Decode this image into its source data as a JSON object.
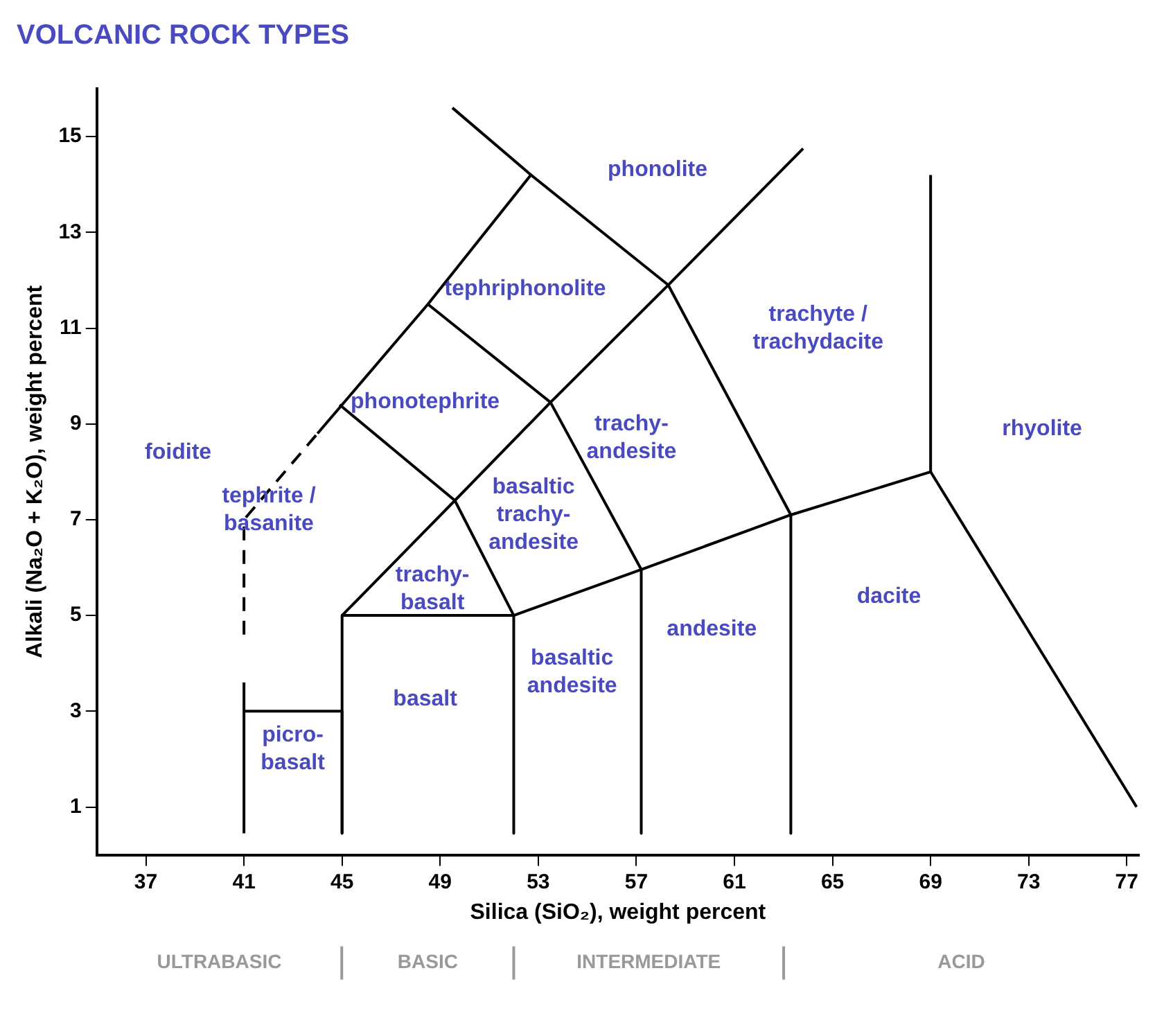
{
  "chart_data": {
    "type": "line",
    "title": "VOLCANIC ROCK TYPES",
    "xlabel": "Silica (SiO₂), weight percent",
    "ylabel": "Alkali (Na₂O + K₂O), weight percent",
    "xlim": [
      35,
      77.5
    ],
    "ylim": [
      0,
      16
    ],
    "xticks": [
      37,
      41,
      45,
      49,
      53,
      57,
      61,
      65,
      69,
      73,
      77
    ],
    "yticks": [
      1,
      3,
      5,
      7,
      9,
      11,
      13,
      15
    ],
    "grid": false,
    "legend": false,
    "marker": "none",
    "series": [
      {
        "color": "#000000",
        "x": [
          41,
          41,
          45,
          45
        ],
        "values": [
          0.45,
          3,
          3,
          0.45
        ]
      },
      {
        "color": "#000000",
        "x": [
          41,
          41
        ],
        "values": [
          3,
          3.6
        ]
      },
      {
        "color": "#000000",
        "line_style": "dashed",
        "x": [
          41,
          41,
          44
        ],
        "values": [
          4.6,
          7,
          8.8
        ]
      },
      {
        "color": "#000000",
        "x": [
          44,
          48.5,
          52.7,
          49.5
        ],
        "values": [
          8.8,
          11.5,
          14.2,
          15.6
        ]
      },
      {
        "color": "#000000",
        "x": [
          45,
          45,
          52,
          52
        ],
        "values": [
          0.45,
          5,
          5,
          0.45
        ]
      },
      {
        "color": "#000000",
        "x": [
          45,
          49.6,
          53.5,
          58.3,
          63.8
        ],
        "values": [
          5,
          7.4,
          9.45,
          11.9,
          14.75
        ]
      },
      {
        "color": "#000000",
        "x": [
          44.9,
          49.6,
          52
        ],
        "values": [
          9.4,
          7.4,
          5
        ]
      },
      {
        "color": "#000000",
        "x": [
          48.5,
          53.5,
          57.2,
          57.2
        ],
        "values": [
          11.5,
          9.45,
          5.96,
          0.45
        ]
      },
      {
        "color": "#000000",
        "x": [
          52.7,
          58.3,
          63.3,
          63.3
        ],
        "values": [
          14.2,
          11.9,
          7.1,
          0.45
        ]
      },
      {
        "color": "#000000",
        "x": [
          52,
          57.2,
          63.3,
          69,
          69
        ],
        "values": [
          5,
          5.96,
          7.1,
          8,
          14.2
        ]
      },
      {
        "color": "#000000",
        "x": [
          69,
          77.4
        ],
        "values": [
          8,
          1
        ]
      }
    ],
    "annotations": [
      "foidite",
      "phonolite",
      "tephriphonolite",
      "trachyte /\ntrachydacite",
      "phonotephrite",
      "trachy-\nandesite",
      "rhyolite",
      "basaltic\ntrachy-\nandesite",
      "tephrite /\nbasanite",
      "trachy-\nbasalt",
      "dacite",
      "andesite",
      "basaltic\nandesite",
      "basalt",
      "picro-\nbasalt",
      "ULTRABASIC",
      "BASIC",
      "INTERMEDIATE",
      "ACID"
    ]
  }
}
